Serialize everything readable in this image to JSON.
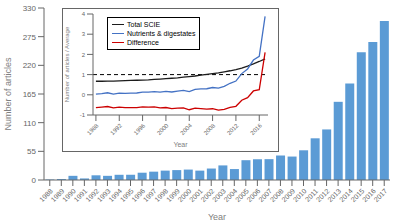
{
  "chart_data": [
    {
      "type": "bar",
      "categories": [
        "1988",
        "1989",
        "1990",
        "1991",
        "1992",
        "1993",
        "1994",
        "1995",
        "1996",
        "1997",
        "1998",
        "1999",
        "2000",
        "2001",
        "2002",
        "2003",
        "2004",
        "2005",
        "2006",
        "2007",
        "2008",
        "2009",
        "2010",
        "2011",
        "2012",
        "2013",
        "2014",
        "2015",
        "2016",
        "2017"
      ],
      "values": [
        1,
        2,
        8,
        3,
        9,
        8,
        10,
        10,
        14,
        16,
        18,
        19,
        20,
        18,
        22,
        28,
        21,
        38,
        40,
        40,
        47,
        45,
        57,
        80,
        97,
        150,
        185,
        245,
        265,
        305
      ],
      "color": "#5B9BD5",
      "xlabel": "Year",
      "ylabel": "Number of articles",
      "ylim": [
        0,
        330
      ],
      "yticks": [
        0,
        55,
        110,
        165,
        220,
        275,
        330
      ],
      "grid": false
    },
    {
      "type": "line",
      "x": [
        1988,
        1989,
        1990,
        1991,
        1992,
        1993,
        1994,
        1995,
        1996,
        1997,
        1998,
        1999,
        2000,
        2001,
        2002,
        2003,
        2004,
        2005,
        2006,
        2007,
        2008,
        2009,
        2010,
        2011,
        2012,
        2013,
        2014,
        2015,
        2016,
        2017
      ],
      "series": [
        {
          "name": "Total SCIE",
          "color": "#1C1C1C",
          "values": [
            0.67,
            0.67,
            0.68,
            0.68,
            0.69,
            0.7,
            0.71,
            0.72,
            0.73,
            0.74,
            0.76,
            0.78,
            0.8,
            0.82,
            0.84,
            0.87,
            0.9,
            0.93,
            0.97,
            1.01,
            1.05,
            1.09,
            1.14,
            1.19,
            1.25,
            1.32,
            1.42,
            1.53,
            1.65,
            1.78
          ]
        },
        {
          "name": "Nutrients & digestates",
          "color": "#4472C4",
          "values": [
            0.03,
            0.06,
            0.1,
            0.03,
            0.08,
            0.07,
            0.08,
            0.09,
            0.13,
            0.13,
            0.16,
            0.13,
            0.17,
            0.14,
            0.18,
            0.22,
            0.16,
            0.27,
            0.29,
            0.3,
            0.36,
            0.33,
            0.42,
            0.57,
            0.68,
            1.05,
            1.28,
            1.72,
            1.9,
            3.88
          ]
        },
        {
          "name": "Difference",
          "color": "#CC0000",
          "values": [
            -0.64,
            -0.61,
            -0.58,
            -0.65,
            -0.61,
            -0.63,
            -0.63,
            -0.63,
            -0.6,
            -0.61,
            -0.6,
            -0.65,
            -0.63,
            -0.68,
            -0.66,
            -0.65,
            -0.74,
            -0.66,
            -0.68,
            -0.71,
            -0.69,
            -0.76,
            -0.72,
            -0.62,
            -0.57,
            -0.27,
            -0.14,
            0.19,
            0.25,
            2.1
          ]
        }
      ],
      "xlabel": "Year",
      "ylabel": "Number of articles / Average",
      "xlim": [
        1987.5,
        2017.5
      ],
      "xticks": [
        1988,
        1992,
        1996,
        2000,
        2004,
        2008,
        2012,
        2016
      ],
      "ylim": [
        -1,
        4
      ],
      "yticks": [
        -1,
        0,
        1,
        2,
        3,
        4
      ],
      "hlines": [
        {
          "y": 1,
          "line_style": "dashed"
        }
      ],
      "legend": "upper left",
      "grid": false
    }
  ]
}
